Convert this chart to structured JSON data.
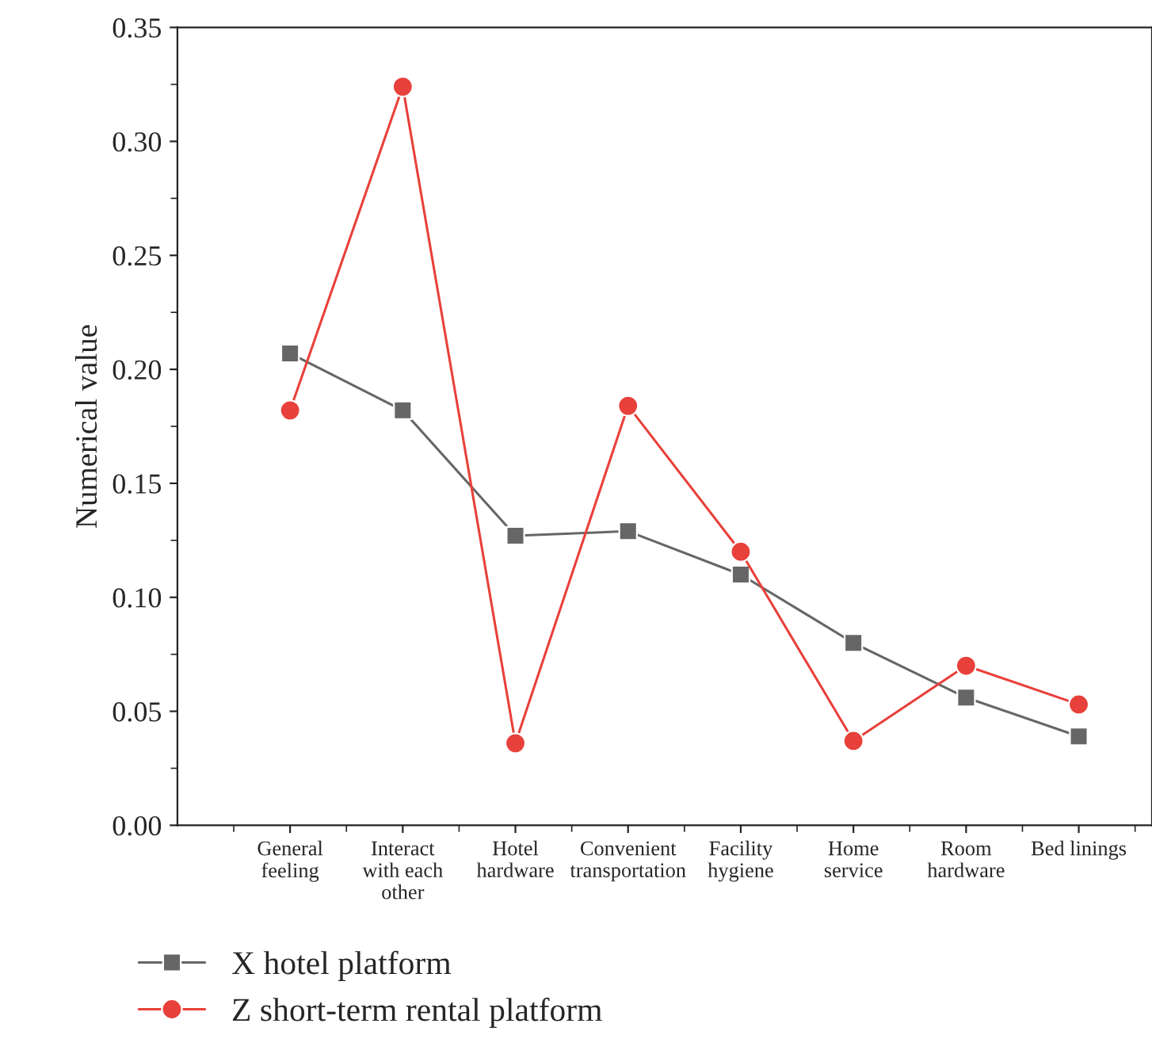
{
  "chart_data": {
    "type": "line",
    "ylabel": "Numerical value",
    "categories": [
      "General\nfeeling",
      "Interact\nwith each\nother",
      "Hotel\nhardware",
      "Convenient\ntransportation",
      "Facility\nhygiene",
      "Home\nservice",
      "Room\nhardware",
      "Bed linings"
    ],
    "series": [
      {
        "name": "X hotel platform",
        "color": "#666666",
        "marker": "square",
        "values": [
          0.207,
          0.182,
          0.127,
          0.129,
          0.11,
          0.08,
          0.056,
          0.039
        ]
      },
      {
        "name": "Z short-term rental platform",
        "color": "#e8403a",
        "marker": "circle",
        "values": [
          0.182,
          0.324,
          0.036,
          0.184,
          0.12,
          0.037,
          0.07,
          0.053
        ]
      }
    ],
    "ylim": [
      0,
      0.35
    ],
    "yticks": [
      {
        "value": 0,
        "label": "0.00"
      },
      {
        "value": 0.05,
        "label": "0.05"
      },
      {
        "value": 0.1,
        "label": "0.10"
      },
      {
        "value": 0.15,
        "label": "0.15"
      },
      {
        "value": 0.2,
        "label": "0.20"
      },
      {
        "value": 0.25,
        "label": "0.25"
      },
      {
        "value": 0.3,
        "label": "0.30"
      },
      {
        "value": 0.35,
        "label": "0.35"
      }
    ],
    "grid": false,
    "legend": "bottom left",
    "line_style": "solid"
  }
}
